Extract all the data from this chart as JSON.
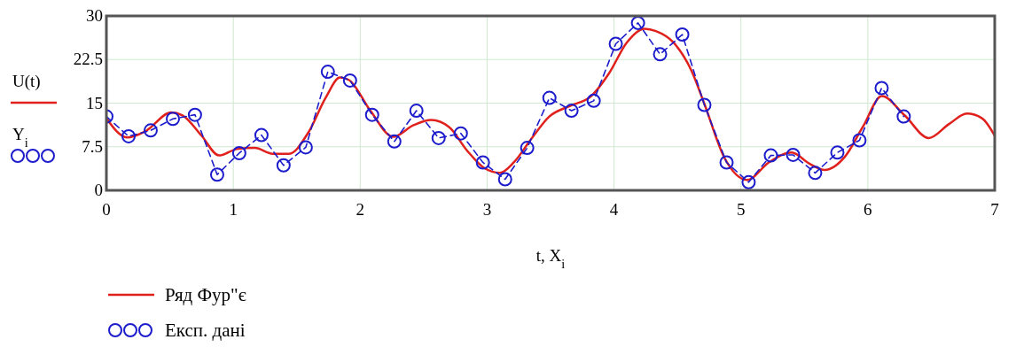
{
  "chart_data": {
    "type": "line",
    "xlabel": "t, X$_{i}$",
    "ylabel": "U(t)\nY$_{i}$",
    "xlim": [
      0,
      7
    ],
    "xticks": [
      0,
      1,
      2,
      3,
      4,
      5,
      6,
      7
    ],
    "ylim": [
      0,
      30
    ],
    "yticks": [
      0,
      7.5,
      15,
      22.5,
      30
    ],
    "grid": true,
    "legend": "bottom left",
    "series": [
      {
        "name": "Ряд Фур\"є",
        "color": "#e0201c",
        "line_style": "solid",
        "marker": "none",
        "x": [
          0,
          0.163,
          0.31,
          0.51,
          0.6,
          0.75,
          0.887,
          1.03,
          1.17,
          1.31,
          1.44,
          1.59,
          1.73,
          1.84,
          1.91,
          2.08,
          2.26,
          2.42,
          2.56,
          2.7,
          2.84,
          2.98,
          3.1,
          3.21,
          3.35,
          3.49,
          3.65,
          3.82,
          3.96,
          4.1,
          4.24,
          4.33,
          4.47,
          4.61,
          4.71,
          4.87,
          5.05,
          5.22,
          5.4,
          5.54,
          5.66,
          5.82,
          5.96,
          6.11,
          6.29,
          6.48,
          6.64,
          6.78,
          6.9,
          7
        ],
        "values": [
          12.4,
          9.1,
          10.2,
          13.4,
          12.9,
          9.4,
          6,
          7.1,
          7.3,
          6.3,
          6.3,
          9.9,
          16,
          19.4,
          19,
          13.7,
          9.2,
          11.2,
          12.1,
          10.9,
          6.9,
          3.8,
          3,
          4.8,
          8.9,
          12.7,
          14.5,
          16.2,
          20.1,
          25.4,
          27.8,
          27.4,
          25.4,
          20.6,
          15,
          5.6,
          1.8,
          4.8,
          6.5,
          4.6,
          3.5,
          5.8,
          10.9,
          16.2,
          12.9,
          9,
          11.4,
          13.2,
          12.4,
          9.4
        ]
      },
      {
        "name": "Експ. дані",
        "color": "#1c1ccc",
        "line_style": "dashed",
        "marker": "circle",
        "x": [
          0,
          0.175,
          0.349,
          0.524,
          0.698,
          0.873,
          1.047,
          1.222,
          1.396,
          1.571,
          1.745,
          1.92,
          2.094,
          2.269,
          2.443,
          2.618,
          2.793,
          2.967,
          3.142,
          3.316,
          3.491,
          3.665,
          3.84,
          4.014,
          4.189,
          4.363,
          4.538,
          4.712,
          4.887,
          5.061,
          5.236,
          5.411,
          5.585,
          5.76,
          5.934,
          6.109,
          6.283
        ],
        "values": [
          12.7,
          9.3,
          10.3,
          12.3,
          13,
          2.7,
          6.4,
          9.5,
          4.3,
          7.4,
          20.4,
          18.9,
          13,
          8.4,
          13.7,
          9,
          9.8,
          4.8,
          1.9,
          7.3,
          15.9,
          13.7,
          15.4,
          25.2,
          28.8,
          23.4,
          26.8,
          14.7,
          4.8,
          1.4,
          6,
          6.1,
          3,
          6.5,
          8.6,
          17.6,
          12.7
        ]
      }
    ]
  }
}
